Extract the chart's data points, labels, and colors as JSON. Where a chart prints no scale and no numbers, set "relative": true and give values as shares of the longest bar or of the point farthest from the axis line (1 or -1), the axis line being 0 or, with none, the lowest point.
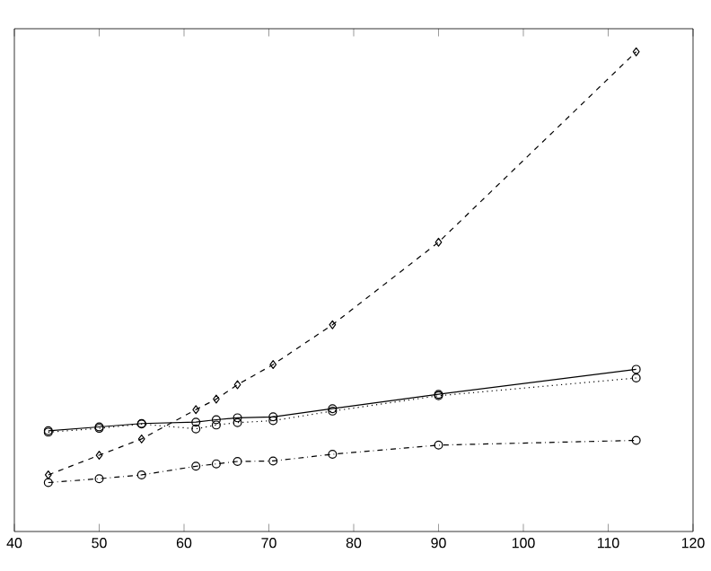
{
  "chart_data": {
    "type": "line",
    "relative": true,
    "tick_labels": "x",
    "xlim": [
      40,
      120
    ],
    "xticks": [
      40,
      50,
      60,
      70,
      80,
      90,
      100,
      110,
      120
    ],
    "series": [
      {
        "color": "#000000",
        "marker": "diamond",
        "line_style": "dashed",
        "x": [
          44,
          50,
          55,
          61.4,
          63.8,
          66.3,
          70.5,
          77.5,
          90,
          113.3
        ],
        "values": [
          0.118,
          0.159,
          0.193,
          0.254,
          0.276,
          0.306,
          0.348,
          0.431,
          0.603,
          1
        ]
      },
      {
        "color": "#000000",
        "marker": "circle",
        "line_style": "solid",
        "x": [
          44,
          50,
          55,
          61.4,
          63.8,
          66.3,
          70.5,
          77.5,
          90,
          113.3
        ],
        "values": [
          0.21,
          0.218,
          0.225,
          0.228,
          0.233,
          0.237,
          0.239,
          0.256,
          0.286,
          0.338
        ]
      },
      {
        "color": "#000000",
        "marker": "circle",
        "line_style": "dotted",
        "x": [
          44,
          50,
          55,
          61.4,
          63.8,
          66.3,
          70.5,
          77.5,
          90,
          113.3
        ],
        "values": [
          0.207,
          0.215,
          0.224,
          0.214,
          0.222,
          0.227,
          0.231,
          0.251,
          0.283,
          0.32
        ]
      },
      {
        "color": "#000000",
        "marker": "circle",
        "line_style": "dashdot",
        "x": [
          44,
          50,
          55,
          61.4,
          63.8,
          66.3,
          70.5,
          77.5,
          90,
          113.3
        ],
        "values": [
          0.102,
          0.11,
          0.118,
          0.136,
          0.141,
          0.146,
          0.147,
          0.161,
          0.18,
          0.19
        ]
      }
    ]
  }
}
